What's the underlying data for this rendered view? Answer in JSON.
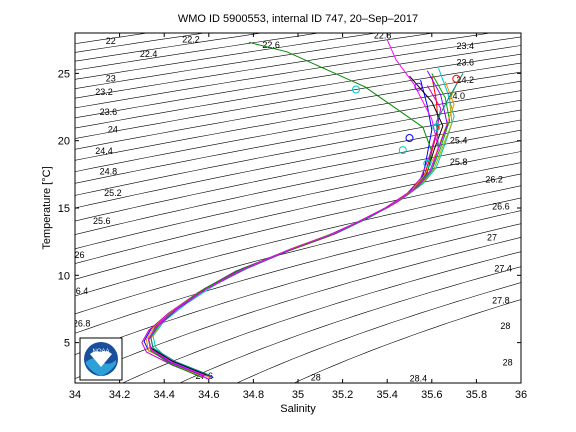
{
  "chart_data": {
    "type": "line",
    "title": "WMO ID 5900553, internal ID 747, 20–Sep–2017",
    "xlabel": "Salinity",
    "ylabel": "Temperature [°C]",
    "xlim": [
      34,
      36
    ],
    "ylim": [
      2,
      28
    ],
    "xticks": [
      "34",
      "34.2",
      "34.4",
      "34.6",
      "34.8",
      "35",
      "35.2",
      "35.4",
      "35.6",
      "35.8",
      "36"
    ],
    "yticks": [
      "5",
      "10",
      "15",
      "20",
      "25"
    ],
    "grid": false,
    "legend": "none",
    "density_contours": {
      "levels": [
        22,
        22.2,
        22.4,
        22.6,
        22.8,
        23,
        23.2,
        23.4,
        23.6,
        23.8,
        24,
        24.2,
        24.4,
        24.6,
        24.8,
        25,
        25.2,
        25.4,
        25.6,
        25.8,
        26,
        26.2,
        26.4,
        26.6,
        26.8,
        27,
        27.2,
        27.4,
        27.6,
        27.8,
        28
      ],
      "labels": [
        {
          "text": "22",
          "s": 34.16,
          "t": 27.2
        },
        {
          "text": "22.2",
          "s": 34.52,
          "t": 27.3
        },
        {
          "text": "22.4",
          "s": 34.33,
          "t": 26.2
        },
        {
          "text": "22.6",
          "s": 34.88,
          "t": 26.9
        },
        {
          "text": "22.8",
          "s": 35.38,
          "t": 27.6
        },
        {
          "text": "23",
          "s": 34.16,
          "t": 24.4
        },
        {
          "text": "23.2",
          "s": 34.13,
          "t": 23.4
        },
        {
          "text": "23.4",
          "s": 35.75,
          "t": 26.8
        },
        {
          "text": "23.6",
          "s": 34.15,
          "t": 21.9
        },
        {
          "text": "23.6",
          "s": 35.75,
          "t": 25.6
        },
        {
          "text": "24",
          "s": 34.17,
          "t": 20.6
        },
        {
          "text": "24.2",
          "s": 35.75,
          "t": 24.3
        },
        {
          "text": "24.0",
          "s": 35.71,
          "t": 23.1
        },
        {
          "text": "24.4",
          "s": 34.13,
          "t": 19.0
        },
        {
          "text": "24.8",
          "s": 34.15,
          "t": 17.5
        },
        {
          "text": "25.2",
          "s": 34.17,
          "t": 15.9
        },
        {
          "text": "25.4",
          "s": 35.72,
          "t": 19.8
        },
        {
          "text": "25.6",
          "s": 34.12,
          "t": 13.8
        },
        {
          "text": "25.8",
          "s": 35.72,
          "t": 18.2
        },
        {
          "text": "26",
          "s": 34.02,
          "t": 11.3
        },
        {
          "text": "26.2",
          "s": 35.88,
          "t": 16.9
        },
        {
          "text": "26.4",
          "s": 34.02,
          "t": 8.6
        },
        {
          "text": "26.6",
          "s": 35.91,
          "t": 14.9
        },
        {
          "text": "26.8",
          "s": 34.03,
          "t": 6.2
        },
        {
          "text": "27",
          "s": 35.87,
          "t": 12.6
        },
        {
          "text": "27.2",
          "s": 34.06,
          "t": 2.5
        },
        {
          "text": "27.4",
          "s": 35.92,
          "t": 10.3
        },
        {
          "text": "27.6",
          "s": 34.58,
          "t": 2.3
        },
        {
          "text": "27.8",
          "s": 35.91,
          "t": 7.9
        },
        {
          "text": "28",
          "s": 35.93,
          "t": 6.0
        },
        {
          "text": "28",
          "s": 35.08,
          "t": 2.2
        },
        {
          "text": "28.4",
          "s": 35.54,
          "t": 2.1
        },
        {
          "text": "28",
          "s": 35.94,
          "t": 3.3
        }
      ]
    },
    "series": [
      {
        "color": "#ff0000",
        "points": [
          [
            34.6,
            2.5
          ],
          [
            34.45,
            3.5
          ],
          [
            34.34,
            4.5
          ],
          [
            34.33,
            5.2
          ],
          [
            34.36,
            6.2
          ],
          [
            34.45,
            7.5
          ],
          [
            34.58,
            9.0
          ],
          [
            34.75,
            10.5
          ],
          [
            34.95,
            11.8
          ],
          [
            35.15,
            13.0
          ],
          [
            35.3,
            14.2
          ],
          [
            35.43,
            15.3
          ],
          [
            35.52,
            16.4
          ],
          [
            35.57,
            17.6
          ],
          [
            35.6,
            19.2
          ],
          [
            35.63,
            21.0
          ],
          [
            35.62,
            23.0
          ],
          [
            35.6,
            24.8
          ]
        ]
      },
      {
        "color": "#00aa00",
        "points": [
          [
            34.58,
            2.6
          ],
          [
            34.43,
            3.6
          ],
          [
            34.35,
            4.6
          ],
          [
            34.34,
            5.4
          ],
          [
            34.38,
            6.4
          ],
          [
            34.47,
            7.7
          ],
          [
            34.6,
            9.1
          ],
          [
            34.78,
            10.6
          ],
          [
            34.98,
            12.0
          ],
          [
            35.18,
            13.2
          ],
          [
            35.33,
            14.4
          ],
          [
            35.45,
            15.5
          ],
          [
            35.54,
            16.6
          ],
          [
            35.6,
            17.8
          ],
          [
            35.64,
            19.5
          ],
          [
            35.68,
            21.5
          ],
          [
            35.66,
            23.2
          ],
          [
            35.6,
            25.0
          ]
        ]
      },
      {
        "color": "#0000ff",
        "points": [
          [
            34.62,
            2.4
          ],
          [
            34.46,
            3.4
          ],
          [
            34.33,
            4.4
          ],
          [
            34.31,
            5.1
          ],
          [
            34.34,
            6.0
          ],
          [
            34.43,
            7.3
          ],
          [
            34.56,
            8.8
          ],
          [
            34.72,
            10.3
          ],
          [
            34.92,
            11.6
          ],
          [
            35.12,
            12.8
          ],
          [
            35.28,
            14.0
          ],
          [
            35.41,
            15.1
          ],
          [
            35.5,
            16.2
          ],
          [
            35.56,
            17.4
          ],
          [
            35.58,
            19.0
          ],
          [
            35.6,
            20.8
          ],
          [
            35.58,
            22.6
          ],
          [
            35.55,
            24.5
          ]
        ]
      },
      {
        "color": "#00c8c8",
        "points": [
          [
            34.56,
            2.7
          ],
          [
            34.42,
            3.7
          ],
          [
            34.36,
            4.7
          ],
          [
            34.35,
            5.5
          ],
          [
            34.4,
            6.6
          ],
          [
            34.5,
            7.9
          ],
          [
            34.63,
            9.3
          ],
          [
            34.8,
            10.8
          ],
          [
            35.01,
            12.2
          ],
          [
            35.2,
            13.4
          ],
          [
            35.35,
            14.6
          ],
          [
            35.47,
            15.7
          ],
          [
            35.56,
            16.8
          ],
          [
            35.62,
            18.0
          ],
          [
            35.66,
            19.8
          ],
          [
            35.7,
            21.8
          ],
          [
            35.67,
            23.6
          ],
          [
            35.63,
            25.4
          ]
        ]
      },
      {
        "color": "#cc00cc",
        "points": [
          [
            34.6,
            2.3
          ],
          [
            34.44,
            3.3
          ],
          [
            34.32,
            4.3
          ],
          [
            34.3,
            5.0
          ],
          [
            34.33,
            5.9
          ],
          [
            34.42,
            7.2
          ],
          [
            34.55,
            8.7
          ],
          [
            34.71,
            10.2
          ],
          [
            34.9,
            11.5
          ],
          [
            35.1,
            12.7
          ],
          [
            35.26,
            13.9
          ],
          [
            35.39,
            15.0
          ],
          [
            35.49,
            16.1
          ],
          [
            35.55,
            17.2
          ],
          [
            35.59,
            18.9
          ],
          [
            35.62,
            20.6
          ],
          [
            35.64,
            22.4
          ],
          [
            35.58,
            24.1
          ]
        ]
      },
      {
        "color": "#aaaa00",
        "points": [
          [
            34.57,
            2.5
          ],
          [
            34.42,
            3.5
          ],
          [
            34.35,
            4.5
          ],
          [
            34.34,
            5.3
          ],
          [
            34.39,
            6.5
          ],
          [
            34.48,
            7.8
          ],
          [
            34.61,
            9.2
          ],
          [
            34.79,
            10.7
          ],
          [
            34.99,
            12.1
          ],
          [
            35.19,
            13.3
          ],
          [
            35.34,
            14.5
          ],
          [
            35.46,
            15.6
          ],
          [
            35.55,
            16.7
          ],
          [
            35.61,
            17.9
          ],
          [
            35.65,
            19.6
          ],
          [
            35.69,
            21.3
          ],
          [
            35.68,
            23.0
          ],
          [
            35.72,
            24.6
          ]
        ]
      },
      {
        "color": "#000000",
        "points": [
          [
            34.59,
            2.6
          ],
          [
            34.44,
            3.6
          ],
          [
            34.34,
            4.6
          ],
          [
            34.33,
            5.3
          ],
          [
            34.37,
            6.3
          ],
          [
            34.46,
            7.6
          ],
          [
            34.59,
            9.0
          ],
          [
            34.76,
            10.5
          ],
          [
            34.96,
            11.9
          ],
          [
            35.16,
            13.1
          ],
          [
            35.31,
            14.3
          ],
          [
            35.44,
            15.4
          ],
          [
            35.53,
            16.5
          ],
          [
            35.58,
            17.7
          ],
          [
            35.61,
            19.3
          ],
          [
            35.65,
            21.1
          ],
          [
            35.6,
            22.9
          ],
          [
            35.5,
            24.8
          ]
        ]
      },
      {
        "color": "#ff8800",
        "points": [
          [
            34.61,
            2.4
          ],
          [
            34.45,
            3.4
          ],
          [
            34.33,
            4.4
          ],
          [
            34.32,
            5.2
          ],
          [
            34.35,
            6.1
          ],
          [
            34.44,
            7.4
          ],
          [
            34.57,
            8.9
          ],
          [
            34.74,
            10.4
          ],
          [
            34.94,
            11.7
          ],
          [
            35.14,
            12.9
          ],
          [
            35.29,
            14.1
          ],
          [
            35.42,
            15.2
          ],
          [
            35.51,
            16.3
          ],
          [
            35.57,
            17.5
          ],
          [
            35.62,
            19.1
          ],
          [
            35.66,
            20.9
          ],
          [
            35.7,
            22.7
          ],
          [
            35.66,
            24.4
          ]
        ]
      },
      {
        "color": "#8800ff",
        "points": [
          [
            34.58,
            2.5
          ],
          [
            34.43,
            3.5
          ],
          [
            34.34,
            4.5
          ],
          [
            34.33,
            5.2
          ],
          [
            34.37,
            6.2
          ],
          [
            34.46,
            7.5
          ],
          [
            34.59,
            9.0
          ],
          [
            34.77,
            10.5
          ],
          [
            34.97,
            11.9
          ],
          [
            35.17,
            13.1
          ],
          [
            35.32,
            14.3
          ],
          [
            35.44,
            15.4
          ],
          [
            35.53,
            16.5
          ],
          [
            35.59,
            17.7
          ],
          [
            35.63,
            19.4
          ],
          [
            35.67,
            21.2
          ],
          [
            35.64,
            23.4
          ],
          [
            35.58,
            25.2
          ]
        ]
      },
      {
        "color": "#008888",
        "points": [
          [
            34.6,
            2.6
          ],
          [
            34.45,
            3.6
          ],
          [
            34.35,
            4.6
          ],
          [
            34.34,
            5.4
          ],
          [
            34.38,
            6.4
          ],
          [
            34.47,
            7.7
          ],
          [
            34.6,
            9.1
          ],
          [
            34.78,
            10.6
          ],
          [
            34.98,
            12.0
          ],
          [
            35.18,
            13.2
          ],
          [
            35.33,
            14.4
          ],
          [
            35.45,
            15.5
          ],
          [
            35.54,
            16.6
          ],
          [
            35.6,
            17.8
          ],
          [
            35.63,
            19.5
          ],
          [
            35.62,
            21.4
          ],
          [
            35.68,
            23.3
          ],
          [
            35.74,
            25.0
          ]
        ]
      },
      {
        "color": "#008800",
        "points": [
          [
            34.57,
            2.4
          ],
          [
            34.43,
            3.4
          ],
          [
            34.34,
            4.4
          ],
          [
            34.33,
            5.2
          ],
          [
            34.36,
            6.2
          ],
          [
            34.45,
            7.5
          ],
          [
            34.58,
            9.0
          ],
          [
            34.75,
            10.5
          ],
          [
            34.95,
            11.8
          ],
          [
            35.15,
            13.0
          ],
          [
            35.3,
            14.2
          ],
          [
            35.43,
            15.3
          ],
          [
            35.52,
            16.4
          ],
          [
            35.58,
            17.6
          ],
          [
            35.6,
            19.2
          ],
          [
            35.56,
            21.0
          ],
          [
            35.3,
            24.0
          ],
          [
            34.95,
            26.6
          ],
          [
            34.78,
            27.3
          ]
        ]
      },
      {
        "color": "#ff00ff",
        "points": [
          [
            34.59,
            2.5
          ],
          [
            34.44,
            3.5
          ],
          [
            34.34,
            4.5
          ],
          [
            34.33,
            5.3
          ],
          [
            34.37,
            6.3
          ],
          [
            34.46,
            7.6
          ],
          [
            34.59,
            9.0
          ],
          [
            34.76,
            10.5
          ],
          [
            34.96,
            11.9
          ],
          [
            35.16,
            13.1
          ],
          [
            35.31,
            14.3
          ],
          [
            35.44,
            15.4
          ],
          [
            35.53,
            16.5
          ],
          [
            35.59,
            17.7
          ],
          [
            35.63,
            19.4
          ],
          [
            35.6,
            21.6
          ],
          [
            35.52,
            24.2
          ],
          [
            35.44,
            26.0
          ],
          [
            35.4,
            27.5
          ]
        ]
      }
    ],
    "markers": [
      {
        "s": 35.26,
        "t": 23.8,
        "color": "#00c8c8"
      },
      {
        "s": 35.5,
        "t": 20.2,
        "color": "#0000ff"
      },
      {
        "s": 35.62,
        "t": 21.0,
        "color": "#00c8c8"
      },
      {
        "s": 35.54,
        "t": 24.0,
        "color": "#8800ff"
      },
      {
        "s": 35.71,
        "t": 24.6,
        "color": "#ff0000"
      },
      {
        "s": 35.58,
        "t": 18.3,
        "color": "#00c8c8"
      },
      {
        "s": 35.47,
        "t": 19.3,
        "color": "#00c8c8"
      }
    ]
  }
}
